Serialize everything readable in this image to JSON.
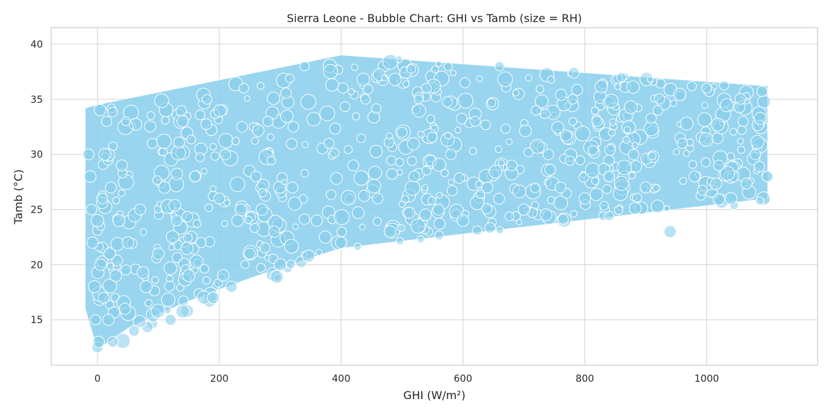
{
  "chart_data": {
    "type": "scatter",
    "title": "Sierra Leone - Bubble Chart: GHI vs Tamb (size = RH)",
    "xlabel": "GHI (W/m²)",
    "ylabel": "Tamb (°C)",
    "xlim": [
      -20,
      1100
    ],
    "ylim": [
      12,
      40
    ],
    "xticks": [
      0,
      200,
      400,
      600,
      800,
      1000
    ],
    "yticks": [
      15,
      20,
      25,
      30,
      35,
      40
    ],
    "grid": true,
    "style": "bubble",
    "colors": {
      "bubble_fill": "#87CEEB",
      "bubble_edge": "#ffffff",
      "grid": "#d9d9d9",
      "frame": "#cccccc"
    },
    "series": [
      {
        "x": [
          -15,
          -12,
          -10,
          -8,
          -5,
          -3,
          0,
          0,
          2,
          5,
          8,
          10,
          12,
          15,
          18,
          20,
          22,
          25,
          30,
          35,
          40,
          45,
          50,
          60,
          70,
          80,
          90,
          100,
          110,
          120,
          130,
          140,
          150,
          160,
          170,
          180,
          190,
          200,
          210,
          220,
          230,
          240,
          250,
          260,
          270,
          280,
          290,
          300,
          320,
          340,
          360,
          380,
          400,
          420,
          440,
          460,
          480,
          500,
          520,
          540,
          560,
          580,
          600,
          620,
          640,
          660,
          680,
          700,
          720,
          740,
          760,
          780,
          800,
          820,
          840,
          860,
          880,
          900,
          920,
          940,
          960,
          980,
          1000,
          1020,
          1040,
          1060,
          1080,
          1100
        ],
        "y": [
          30,
          28,
          25,
          22,
          18,
          15,
          12.5,
          24,
          13,
          20,
          26,
          17,
          30,
          33,
          15,
          21,
          27,
          13,
          19,
          24,
          29,
          16,
          22,
          14,
          25,
          18,
          31,
          21,
          27,
          15,
          24,
          33,
          19,
          28,
          22,
          35,
          17,
          26,
          30,
          18,
          24,
          36,
          21,
          28,
          25,
          33,
          23,
          20,
          27,
          38,
          24,
          31,
          22,
          29,
          35,
          26,
          23,
          32,
          28,
          36,
          25,
          30,
          24,
          33,
          27,
          38,
          29,
          25,
          34,
          30,
          27,
          35,
          26,
          33,
          28,
          37,
          30,
          27,
          34,
          23,
          31,
          28,
          36,
          29,
          26,
          33,
          30,
          28
        ],
        "size": [
          70,
          80,
          65,
          75,
          85,
          60,
          70,
          90,
          75,
          80,
          65,
          70,
          85,
          60,
          75,
          80,
          70,
          65,
          80,
          85,
          70,
          75,
          80,
          65,
          70,
          85,
          60,
          75,
          80,
          70,
          65,
          75,
          85,
          70,
          60,
          55,
          80,
          70,
          65,
          75,
          80,
          55,
          70,
          65,
          80,
          60,
          75,
          85,
          70,
          50,
          75,
          60,
          80,
          70,
          55,
          65,
          80,
          60,
          70,
          55,
          75,
          65,
          80,
          60,
          70,
          50,
          65,
          75,
          55,
          65,
          70,
          55,
          75,
          60,
          70,
          50,
          65,
          75,
          55,
          85,
          60,
          70,
          55,
          65,
          80,
          60,
          65,
          70
        ]
      }
    ]
  }
}
